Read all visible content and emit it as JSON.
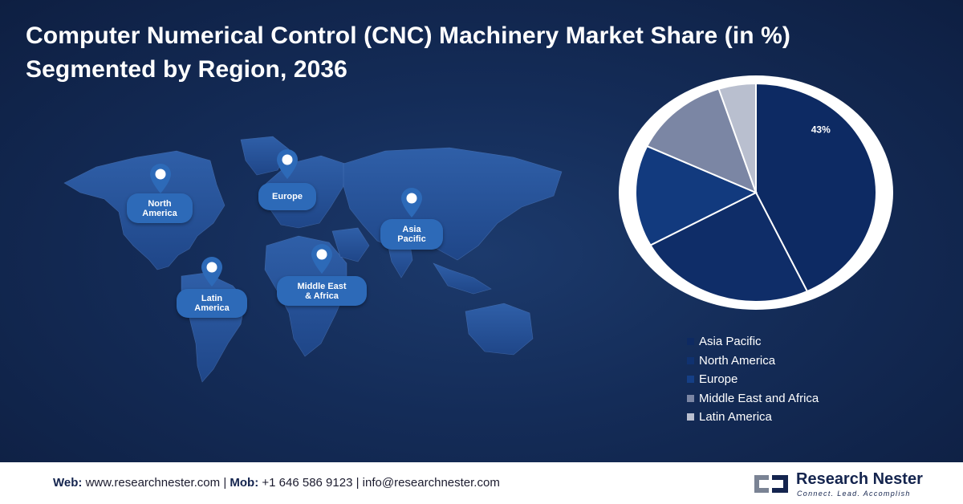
{
  "title_line1": "Computer Numerical Control (CNC) Machinery Market Share (in %)",
  "title_line2": "Segmented by Region, 2036",
  "map": {
    "regions": [
      {
        "label_line1": "North",
        "label_line2": "America"
      },
      {
        "label_line1": "Europe",
        "label_line2": ""
      },
      {
        "label_line1": "Asia",
        "label_line2": "Pacific"
      },
      {
        "label_line1": "Middle East",
        "label_line2": "& Africa"
      },
      {
        "label_line1": "Latin",
        "label_line2": "America"
      }
    ]
  },
  "chart_data": {
    "type": "pie",
    "title": "Computer Numerical Control (CNC) Machinery Market Share (in %) Segmented by Region, 2036",
    "labels": [
      "Asia Pacific",
      "North America",
      "Europe",
      "Middle East and Africa",
      "Latin America"
    ],
    "values": [
      43,
      24,
      15,
      13,
      5
    ],
    "colors": [
      "#0d2a63",
      "#0f2d68",
      "#123a7e",
      "#7b86a4",
      "#b9bfcf"
    ],
    "data_labels": [
      "43%",
      "",
      "",
      "",
      ""
    ],
    "legend_position": "bottom-right"
  },
  "footer": {
    "web_label": "Web:",
    "web_value": "www.researchnester.com",
    "sep1": "|",
    "mob_label": "Mob:",
    "mob_value": "+1 646 586 9123",
    "sep2": "|",
    "email": "info@researchnester.com"
  },
  "logo": {
    "name": "Research Nester",
    "tagline": "Connect. Lead. Accomplish"
  }
}
